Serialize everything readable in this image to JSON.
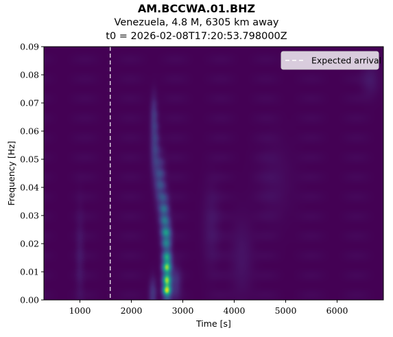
{
  "chart_data": {
    "type": "heatmap",
    "title": "AM.BCCWA.01.BHZ",
    "subtitle_lines": [
      "Venezuela, 4.8 M, 6305 km away",
      "t0 = 2026-02-08T17:20:53.798000Z"
    ],
    "xlabel": "Time [s]",
    "ylabel": "Frequency [Hz]",
    "xlim": [
      300,
      6900
    ],
    "ylim": [
      0.0,
      0.09
    ],
    "xticks": [
      1000,
      2000,
      3000,
      4000,
      5000,
      6000
    ],
    "xtick_labels": [
      "1000",
      "2000",
      "3000",
      "4000",
      "5000",
      "6000"
    ],
    "yticks": [
      0.0,
      0.01,
      0.02,
      0.03,
      0.04,
      0.05,
      0.06,
      0.07,
      0.08,
      0.09
    ],
    "ytick_labels": [
      "0.00",
      "0.01",
      "0.02",
      "0.03",
      "0.04",
      "0.05",
      "0.06",
      "0.07",
      "0.08",
      "0.09"
    ],
    "colormap": "viridis",
    "legend": {
      "position": "top-right",
      "entries": [
        {
          "label": "Expected arrival",
          "style": "dashed",
          "color": "#ffffff"
        }
      ]
    },
    "expected_arrival_time": 1590,
    "energy_blobs": [
      {
        "t": 2690,
        "f": 0.0045,
        "st": 55,
        "sf": 0.0028,
        "a": 1.0
      },
      {
        "t": 2690,
        "f": 0.0125,
        "st": 60,
        "sf": 0.0032,
        "a": 0.82
      },
      {
        "t": 2680,
        "f": 0.0225,
        "st": 65,
        "sf": 0.0035,
        "a": 0.5
      },
      {
        "t": 2640,
        "f": 0.031,
        "st": 65,
        "sf": 0.0045,
        "a": 0.34
      },
      {
        "t": 2560,
        "f": 0.042,
        "st": 70,
        "sf": 0.006,
        "a": 0.24
      },
      {
        "t": 2460,
        "f": 0.054,
        "st": 60,
        "sf": 0.007,
        "a": 0.18
      },
      {
        "t": 2440,
        "f": 0.066,
        "st": 50,
        "sf": 0.005,
        "a": 0.12
      },
      {
        "t": 2420,
        "f": 0.002,
        "st": 55,
        "sf": 0.004,
        "a": 0.15
      },
      {
        "t": 2850,
        "f": 0.006,
        "st": 80,
        "sf": 0.004,
        "a": 0.14
      },
      {
        "t": 1000,
        "f": 0.015,
        "st": 60,
        "sf": 0.012,
        "a": 0.05
      },
      {
        "t": 3550,
        "f": 0.026,
        "st": 120,
        "sf": 0.01,
        "a": 0.05
      },
      {
        "t": 4150,
        "f": 0.015,
        "st": 150,
        "sf": 0.01,
        "a": 0.05
      },
      {
        "t": 6650,
        "f": 0.078,
        "st": 120,
        "sf": 0.004,
        "a": 0.06
      },
      {
        "t": 4800,
        "f": 0.042,
        "st": 250,
        "sf": 0.01,
        "a": 0.03
      }
    ]
  }
}
